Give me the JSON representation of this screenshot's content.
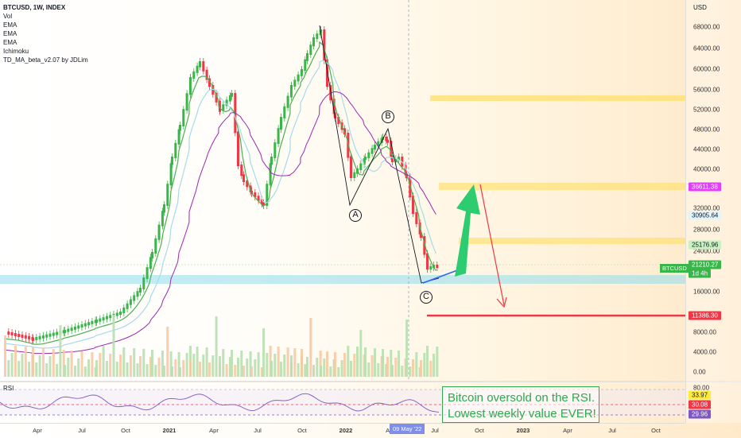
{
  "legend": {
    "symbol_line": "BTCUSD, 1W, INDEX",
    "indicators": [
      "Vol",
      "EMA",
      "EMA",
      "EMA",
      "Ichimoku",
      "TD_MA_beta_v2.07 by JDLim"
    ]
  },
  "price_axis": {
    "currency": "USD",
    "ticks": [
      "68000.00",
      "64000.00",
      "60000.00",
      "56000.00",
      "52000.00",
      "48000.00",
      "44000.00",
      "40000.00",
      "32000.00",
      "28000.00",
      "24000.00",
      "16000.00",
      "8000.00",
      "4000.00",
      "0.00"
    ],
    "badges": [
      {
        "text": "36611.38",
        "bg": "#e040fb",
        "fg": "#ffffff"
      },
      {
        "text": "30905.64",
        "bg": "#e0f4fa",
        "fg": "#131722"
      },
      {
        "text": "25176.96",
        "bg": "#c8f2c2",
        "fg": "#131722"
      },
      {
        "text": "21210.27",
        "bg": "#39b54a",
        "fg": "#ffffff"
      },
      {
        "text": "1d 4h",
        "bg": "#39b54a",
        "fg": "#ffffff"
      },
      {
        "text": "11386.30",
        "bg": "#f23645",
        "fg": "#ffffff"
      }
    ]
  },
  "rsi_axis": {
    "ticks": [
      "80.00"
    ],
    "badges": [
      {
        "text": "33.97",
        "bg": "#ffeb3b",
        "fg": "#131722"
      },
      {
        "text": "30.08",
        "bg": "#f23645",
        "fg": "#ffffff"
      },
      {
        "text": "29.96",
        "bg": "#7e57c2",
        "fg": "#ffffff"
      }
    ]
  },
  "symbol_badge": "BTCUSD",
  "time_axis": {
    "labels": [
      {
        "text": "Apr",
        "bold": false
      },
      {
        "text": "Jul",
        "bold": false
      },
      {
        "text": "Oct",
        "bold": false
      },
      {
        "text": "2021",
        "bold": true
      },
      {
        "text": "Apr",
        "bold": false
      },
      {
        "text": "Jul",
        "bold": false
      },
      {
        "text": "Oct",
        "bold": false
      },
      {
        "text": "2022",
        "bold": true
      },
      {
        "text": "Apr",
        "bold": false
      },
      {
        "text": "Jul",
        "bold": false
      },
      {
        "text": "Oct",
        "bold": false
      },
      {
        "text": "2023",
        "bold": true
      },
      {
        "text": "Apr",
        "bold": false
      },
      {
        "text": "Jul",
        "bold": false
      },
      {
        "text": "Oct",
        "bold": false
      }
    ],
    "crosshair_date": "09 May '22"
  },
  "rsi": {
    "title": "RSI"
  },
  "wave_labels": [
    "A",
    "B",
    "C"
  ],
  "note": {
    "line1": "Bitcoin oversold on the RSI.",
    "line2": "Lowest weekly value EVER!"
  },
  "colors": {
    "bull": "#39b54a",
    "bear": "#f23645",
    "ema_fast": "#4caf50",
    "ema_slow": "#9c27b0",
    "ema_mid": "#a6dbe8",
    "zone": "#ffe27a",
    "support": "#8fdcec",
    "arrow": "#2ecc71"
  }
}
